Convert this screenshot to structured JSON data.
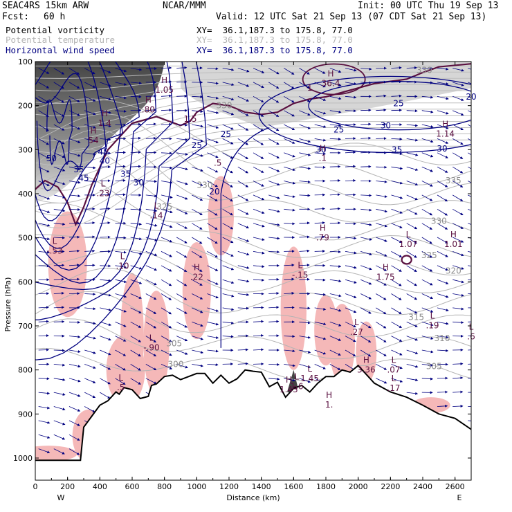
{
  "header": {
    "model": "SEAC4RS 15km ARW",
    "center": "NCAR/MMM",
    "init": "Init: 00 UTC Thu 19 Sep 13",
    "fcst_label": "Fcst:",
    "fcst_value": "60 h",
    "valid": "Valid: 12 UTC Sat 21 Sep 13 (07 CDT Sat 21 Sep 13)"
  },
  "legend": [
    {
      "label": "Potential vorticity",
      "xy": "XY=  36.1,187.3 to 175.8, 77.0",
      "color": "#000000"
    },
    {
      "label": "Potential temperature",
      "xy": "XY=  36.1,187.3 to 175.8, 77.0",
      "color": "#b4b4b4"
    },
    {
      "label": "Horizontal wind speed",
      "xy": "XY=  36.1,187.3 to 175.8, 77.0",
      "color": "#000080"
    }
  ],
  "chart_data": {
    "type": "cross-section",
    "xlabel": "Distance (km)",
    "ylabel": "Pressure (hPa)",
    "xlim": [
      0,
      2700
    ],
    "ylim": [
      1050,
      100
    ],
    "x_ticks": [
      0,
      200,
      400,
      600,
      800,
      1000,
      1200,
      1400,
      1600,
      1800,
      2000,
      2200,
      2400,
      2600
    ],
    "y_ticks": [
      100,
      200,
      300,
      400,
      500,
      600,
      700,
      800,
      900,
      1000
    ],
    "end_labels": {
      "left": "W",
      "right": "E"
    },
    "colors": {
      "wind": "#000080",
      "theta": "#b4b4b4",
      "pv": "#5a1040",
      "pv_fill": "#f5b8b8",
      "terrain": "#000000"
    },
    "terrain": [
      [
        0,
        1005
      ],
      [
        280,
        1005
      ],
      [
        300,
        930
      ],
      [
        350,
        905
      ],
      [
        400,
        880
      ],
      [
        450,
        870
      ],
      [
        500,
        850
      ],
      [
        520,
        855
      ],
      [
        550,
        840
      ],
      [
        600,
        845
      ],
      [
        650,
        865
      ],
      [
        700,
        860
      ],
      [
        720,
        835
      ],
      [
        750,
        832
      ],
      [
        800,
        815
      ],
      [
        850,
        812
      ],
      [
        900,
        822
      ],
      [
        950,
        815
      ],
      [
        1000,
        808
      ],
      [
        1050,
        808
      ],
      [
        1100,
        830
      ],
      [
        1150,
        812
      ],
      [
        1200,
        830
      ],
      [
        1250,
        820
      ],
      [
        1300,
        800
      ],
      [
        1350,
        803
      ],
      [
        1400,
        805
      ],
      [
        1450,
        838
      ],
      [
        1500,
        828
      ],
      [
        1550,
        862
      ],
      [
        1580,
        850
      ],
      [
        1600,
        842
      ],
      [
        1650,
        835
      ],
      [
        1700,
        850
      ],
      [
        1750,
        830
      ],
      [
        1800,
        815
      ],
      [
        1850,
        815
      ],
      [
        1900,
        800
      ],
      [
        1950,
        805
      ],
      [
        2000,
        790
      ],
      [
        2100,
        830
      ],
      [
        2200,
        850
      ],
      [
        2300,
        862
      ],
      [
        2400,
        880
      ],
      [
        2500,
        900
      ],
      [
        2600,
        910
      ],
      [
        2700,
        935
      ]
    ],
    "theta_levels": [
      "330",
      "325",
      "320",
      "315",
      "310",
      "305",
      "300",
      "330",
      "335",
      "330",
      "325",
      "320",
      "315"
    ],
    "theta_labels": [
      {
        "t": "330",
        "x": 1170,
        "p": 200
      },
      {
        "t": "330",
        "x": 1050,
        "p": 380
      },
      {
        "t": "325",
        "x": 800,
        "p": 430
      },
      {
        "t": "325",
        "x": 2440,
        "p": 540
      },
      {
        "t": "320",
        "x": 2590,
        "p": 575
      },
      {
        "t": "315",
        "x": 2360,
        "p": 680
      },
      {
        "t": "310",
        "x": 2520,
        "p": 728
      },
      {
        "t": "305",
        "x": 2470,
        "p": 792
      },
      {
        "t": "305",
        "x": 860,
        "p": 740
      },
      {
        "t": "300",
        "x": 870,
        "p": 787
      },
      {
        "t": "330",
        "x": 2500,
        "p": 462
      },
      {
        "t": "335",
        "x": 2590,
        "p": 370
      },
      {
        "t": "330",
        "x": 2410,
        "p": 120
      }
    ],
    "wind_labels": [
      {
        "t": "45",
        "x": 420,
        "p": 305
      },
      {
        "t": "40",
        "x": 430,
        "p": 325
      },
      {
        "t": "35",
        "x": 270,
        "p": 345
      },
      {
        "t": "35",
        "x": 560,
        "p": 355
      },
      {
        "t": "45",
        "x": 300,
        "p": 365
      },
      {
        "t": "30",
        "x": 640,
        "p": 375
      },
      {
        "t": "25",
        "x": 1000,
        "p": 290
      },
      {
        "t": "25",
        "x": 1180,
        "p": 265
      },
      {
        "t": "20",
        "x": 1110,
        "p": 395
      },
      {
        "t": "25",
        "x": 1880,
        "p": 255
      },
      {
        "t": "30",
        "x": 2170,
        "p": 245
      },
      {
        "t": "30",
        "x": 2520,
        "p": 298
      },
      {
        "t": "35",
        "x": 2240,
        "p": 300
      },
      {
        "t": "30",
        "x": 1770,
        "p": 300
      },
      {
        "t": "20",
        "x": 2700,
        "p": 180
      },
      {
        "t": "25",
        "x": 2250,
        "p": 195
      },
      {
        "t": "50",
        "x": 100,
        "p": 320
      }
    ],
    "pv_labels": [
      {
        "t": "1.5",
        "x": 960,
        "p": 230
      },
      {
        "t": ".5",
        "x": 1130,
        "p": 330
      },
      {
        "t": "1",
        "x": 1700,
        "p": 160
      }
    ],
    "extrema": [
      {
        "hl": "L",
        "v": "-.53",
        "x": 120,
        "p": 520
      },
      {
        "hl": "H",
        "v": "1.4",
        "x": 430,
        "p": 230
      },
      {
        "hl": "H",
        "v": "54",
        "x": 360,
        "p": 270
      },
      {
        "hl": "L",
        "v": ".23",
        "x": 420,
        "p": 390
      },
      {
        "hl": "L",
        "v": ".14",
        "x": 750,
        "p": 440
      },
      {
        "hl": "L",
        "v": ".10",
        "x": 540,
        "p": 555
      },
      {
        "hl": "H",
        "v": ".22",
        "x": 1000,
        "p": 580
      },
      {
        "hl": "L",
        "v": "-.90",
        "x": 720,
        "p": 740
      },
      {
        "hl": "L",
        "v": ".5",
        "x": 530,
        "p": 830
      },
      {
        "hl": "H",
        "v": "1.05",
        "x": 800,
        "p": 155
      },
      {
        "hl": "H",
        "v": "36.4",
        "x": 1830,
        "p": 140
      },
      {
        "hl": "L",
        "v": "-.15",
        "x": 1640,
        "p": 575
      },
      {
        "hl": "H",
        "v": ".79",
        "x": 1780,
        "p": 490
      },
      {
        "hl": "L",
        "v": ".27",
        "x": 1990,
        "p": 705
      },
      {
        "hl": "H",
        "v": "3.36",
        "x": 2050,
        "p": 790
      },
      {
        "hl": "L",
        "v": ".07",
        "x": 2220,
        "p": 790
      },
      {
        "hl": "L",
        "v": "1.07",
        "x": 2310,
        "p": 505
      },
      {
        "hl": "H",
        "v": "1.75",
        "x": 2170,
        "p": 580
      },
      {
        "hl": "L",
        "v": ".19",
        "x": 2460,
        "p": 690
      },
      {
        "hl": "H",
        "v": "1.01",
        "x": 2590,
        "p": 505
      },
      {
        "hl": "L",
        "v": ".6",
        "x": 2700,
        "p": 715
      },
      {
        "hl": "H",
        "v": "1.14",
        "x": 2540,
        "p": 255
      },
      {
        "hl": "L",
        "v": "1.45",
        "x": 1700,
        "p": 810
      },
      {
        "hl": "L",
        "v": ".17",
        "x": 2220,
        "p": 832
      },
      {
        "hl": "H",
        "v": "1.43",
        "x": 1570,
        "p": 835
      },
      {
        "hl": "L",
        "v": "1.6",
        "x": 1620,
        "p": 828
      },
      {
        "hl": "H",
        "v": "1.",
        "x": 1820,
        "p": 870
      },
      {
        "hl": "H",
        "v": ".1",
        "x": 1780,
        "p": 310
      },
      {
        "hl": "H",
        "v": ".80",
        "x": 700,
        "p": 200
      }
    ]
  }
}
